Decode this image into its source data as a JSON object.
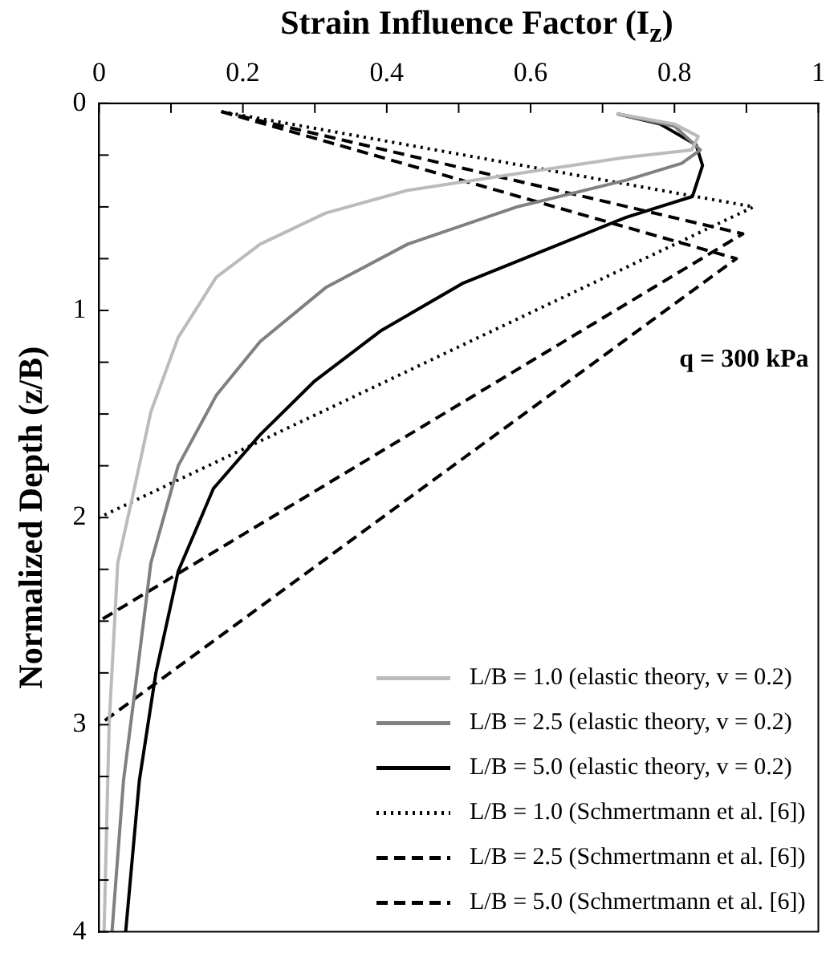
{
  "chart_data": {
    "type": "line",
    "xlabel": "Strain Influence Factor (I$_{z}$)",
    "ylabel": "Normalized Depth (z/B)",
    "annotations": [
      "q = 300 kPa"
    ],
    "xlim": [
      0,
      1
    ],
    "xticks": [
      0,
      {
        "value": 0.1,
        "label": null
      },
      0.2,
      {
        "value": 0.3,
        "label": null
      },
      0.4,
      {
        "value": 0.5,
        "label": null
      },
      0.6,
      {
        "value": 0.7,
        "label": null
      },
      0.8,
      {
        "value": 0.9,
        "label": null
      },
      1
    ],
    "ylim": [
      4,
      0
    ],
    "yticks": [
      0,
      {
        "value": 0.25,
        "label": null
      },
      {
        "value": 0.5,
        "label": null
      },
      {
        "value": 0.75,
        "label": null
      },
      1,
      {
        "value": 1.25,
        "label": null
      },
      {
        "value": 1.5,
        "label": null
      },
      {
        "value": 1.75,
        "label": null
      },
      2,
      {
        "value": 2.25,
        "label": null
      },
      {
        "value": 2.5,
        "label": null
      },
      {
        "value": 2.75,
        "label": null
      },
      3,
      {
        "value": 3.25,
        "label": null
      },
      {
        "value": 3.5,
        "label": null
      },
      {
        "value": 3.75,
        "label": null
      },
      4
    ],
    "grid": false,
    "legend": "bottom right",
    "marker": "none",
    "series": [
      {
        "name": "L/B = 1.0 (elastic theory, v = 0.2)",
        "color": "#bbbbbb",
        "line_style": "solid",
        "x": [
          0.72,
          0.8,
          0.833,
          0.824,
          0.734,
          0.581,
          0.429,
          0.315,
          0.224,
          0.163,
          0.11,
          0.072,
          0.049,
          0.026,
          0.014,
          0.007
        ],
        "values": [
          0.05,
          0.1,
          0.16,
          0.225,
          0.26,
          0.34,
          0.42,
          0.53,
          0.68,
          0.84,
          1.13,
          1.49,
          1.86,
          2.22,
          3.0,
          4.0
        ]
      },
      {
        "name": "L/B = 2.5 (elastic theory, v = 0.2)",
        "color": "#808080",
        "line_style": "solid",
        "x": [
          0.72,
          0.8,
          0.836,
          0.81,
          0.734,
          0.581,
          0.429,
          0.315,
          0.224,
          0.163,
          0.11,
          0.072,
          0.053,
          0.034,
          0.018
        ],
        "values": [
          0.05,
          0.11,
          0.225,
          0.29,
          0.37,
          0.5,
          0.68,
          0.89,
          1.15,
          1.41,
          1.75,
          2.22,
          2.75,
          3.27,
          4.0
        ]
      },
      {
        "name": "L/B = 5.0 (elastic theory, v = 0.2)",
        "color": "#000000",
        "line_style": "solid",
        "x": [
          0.72,
          0.78,
          0.83,
          0.839,
          0.825,
          0.733,
          0.619,
          0.505,
          0.391,
          0.3,
          0.224,
          0.159,
          0.11,
          0.079,
          0.056,
          0.037
        ],
        "values": [
          0.05,
          0.1,
          0.2,
          0.3,
          0.45,
          0.55,
          0.71,
          0.87,
          1.1,
          1.34,
          1.6,
          1.86,
          2.26,
          2.75,
          3.27,
          4.0
        ]
      },
      {
        "name": "L/B = 1.0 (Schmertmann et al. [6])",
        "color": "#000000",
        "line_style": "dotted",
        "x": [
          0.17,
          0.91,
          0
        ],
        "values": [
          0.04,
          0.5,
          2.0
        ]
      },
      {
        "name": "L/B = 2.5 (Schmertmann et al. [6])",
        "color": "#000000",
        "line_style": "dashed",
        "x": [
          0.17,
          0.895,
          0
        ],
        "values": [
          0.04,
          0.63,
          2.5
        ]
      },
      {
        "name": "L/B = 5.0 (Schmertmann et al. [6])",
        "color": "#000000",
        "line_style": "dashed",
        "x": [
          0.17,
          0.886,
          0
        ],
        "values": [
          0.04,
          0.75,
          3.0
        ]
      }
    ]
  }
}
